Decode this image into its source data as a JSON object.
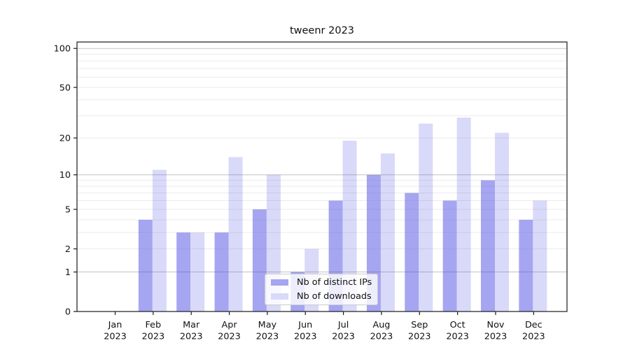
{
  "chart_data": {
    "type": "bar",
    "title": "tweenr 2023",
    "year": "2023",
    "categories": [
      "Jan",
      "Feb",
      "Mar",
      "Apr",
      "May",
      "Jun",
      "Jul",
      "Aug",
      "Sep",
      "Oct",
      "Nov",
      "Dec"
    ],
    "series": [
      {
        "name": "Nb of distinct IPs",
        "color": "#a5a5f1",
        "values": [
          0,
          4,
          3,
          3,
          5,
          1,
          6,
          10,
          7,
          6,
          9,
          4
        ]
      },
      {
        "name": "Nb of downloads",
        "color": "#d9d9f9",
        "values": [
          0,
          11,
          3,
          14,
          10,
          2,
          19,
          15,
          26,
          29,
          22,
          6
        ]
      }
    ],
    "y_scale": "log1p",
    "ylim": [
      0,
      113
    ],
    "y_ticks": [
      0,
      1,
      2,
      5,
      10,
      20,
      50,
      100
    ],
    "y_major_gridlines": [
      1,
      10,
      100
    ],
    "y_minor_gridlines": [
      2,
      3,
      4,
      5,
      6,
      7,
      8,
      9,
      20,
      30,
      40,
      50,
      60,
      70,
      80,
      90
    ],
    "grid": true,
    "legend_position": "lower center"
  },
  "colors": {
    "spine": "#1a1a1a",
    "text": "#111111",
    "grid_minor": "rgba(128,128,128,0.16)",
    "grid_major": "rgba(90,90,90,0.36)",
    "background": "#ffffff"
  }
}
